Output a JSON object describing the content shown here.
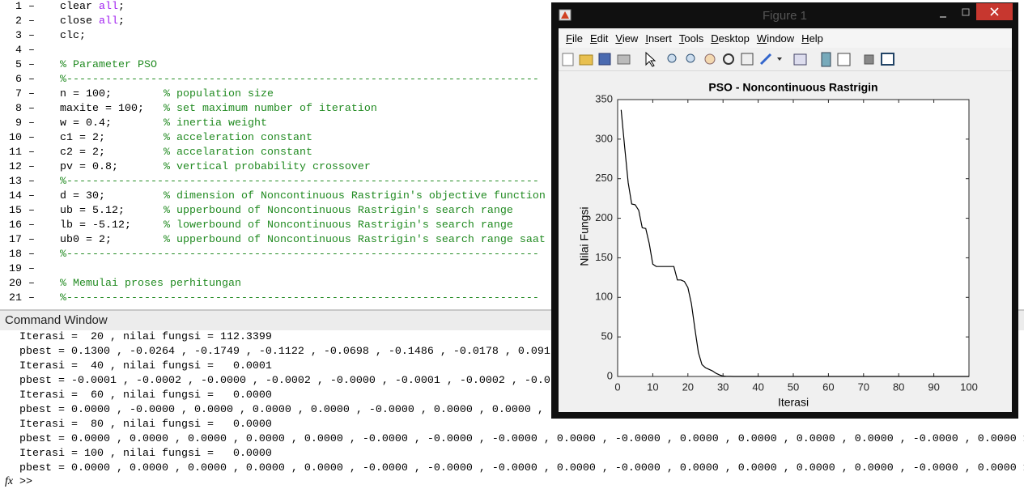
{
  "editor": {
    "lines": [
      {
        "number": "1",
        "segments": [
          {
            "text": "clear ",
            "color": "#000000"
          },
          {
            "text": "all",
            "color": "#a020f0"
          },
          {
            "text": ";",
            "color": "#000000"
          }
        ]
      },
      {
        "number": "2",
        "segments": [
          {
            "text": "close ",
            "color": "#000000"
          },
          {
            "text": "all",
            "color": "#a020f0"
          },
          {
            "text": ";",
            "color": "#000000"
          }
        ]
      },
      {
        "number": "3",
        "segments": [
          {
            "text": "clc;",
            "color": "#000000"
          }
        ]
      },
      {
        "number": "4",
        "segments": []
      },
      {
        "number": "5",
        "segments": [
          {
            "text": "% Parameter PSO",
            "color": "#228b22"
          }
        ]
      },
      {
        "number": "6",
        "segments": [
          {
            "text": "%-------------------------------------------------------------------------",
            "color": "#228b22"
          }
        ]
      },
      {
        "number": "7",
        "segments": [
          {
            "text": "n = 100;        ",
            "color": "#000000"
          },
          {
            "text": "% population size",
            "color": "#228b22"
          }
        ]
      },
      {
        "number": "8",
        "segments": [
          {
            "text": "maxite = 100;   ",
            "color": "#000000"
          },
          {
            "text": "% set maximum number of iteration",
            "color": "#228b22"
          }
        ]
      },
      {
        "number": "9",
        "segments": [
          {
            "text": "w = 0.4;        ",
            "color": "#000000"
          },
          {
            "text": "% inertia weight",
            "color": "#228b22"
          }
        ]
      },
      {
        "number": "10",
        "segments": [
          {
            "text": "c1 = 2;         ",
            "color": "#000000"
          },
          {
            "text": "% acceleration constant",
            "color": "#228b22"
          }
        ]
      },
      {
        "number": "11",
        "segments": [
          {
            "text": "c2 = 2;         ",
            "color": "#000000"
          },
          {
            "text": "% accelaration constant",
            "color": "#228b22"
          }
        ]
      },
      {
        "number": "12",
        "segments": [
          {
            "text": "pv = 0.8;       ",
            "color": "#000000"
          },
          {
            "text": "% vertical probability crossover",
            "color": "#228b22"
          }
        ]
      },
      {
        "number": "13",
        "segments": [
          {
            "text": "%-------------------------------------------------------------------------",
            "color": "#228b22"
          }
        ]
      },
      {
        "number": "14",
        "segments": [
          {
            "text": "d = 30;         ",
            "color": "#000000"
          },
          {
            "text": "% dimension of Noncontinuous Rastrigin's objective function",
            "color": "#228b22"
          }
        ]
      },
      {
        "number": "15",
        "segments": [
          {
            "text": "ub = 5.12;      ",
            "color": "#000000"
          },
          {
            "text": "% upperbound of Noncontinuous Rastrigin's search range",
            "color": "#228b22"
          }
        ]
      },
      {
        "number": "16",
        "segments": [
          {
            "text": "lb = -5.12;     ",
            "color": "#000000"
          },
          {
            "text": "% lowerbound of Noncontinuous Rastrigin's search range",
            "color": "#228b22"
          }
        ]
      },
      {
        "number": "17",
        "segments": [
          {
            "text": "ub0 = 2;        ",
            "color": "#000000"
          },
          {
            "text": "% upperbound of Noncontinuous Rastrigin's search range saat",
            "color": "#228b22"
          }
        ]
      },
      {
        "number": "18",
        "segments": [
          {
            "text": "%-------------------------------------------------------------------------",
            "color": "#228b22"
          }
        ]
      },
      {
        "number": "19",
        "segments": []
      },
      {
        "number": "20",
        "segments": [
          {
            "text": "% Memulai proses perhitungan",
            "color": "#228b22"
          }
        ]
      },
      {
        "number": "21",
        "segments": [
          {
            "text": "%-------------------------------------------------------------------------",
            "color": "#228b22"
          }
        ]
      }
    ]
  },
  "command_window": {
    "title": "Command Window",
    "lines": [
      "Iterasi =  20 , nilai fungsi = 112.3399",
      "pbest = 0.1300 , -0.0264 , -0.1749 , -0.1122 , -0.0698 , -0.1486 , -0.0178 , 0.091",
      "Iterasi =  40 , nilai fungsi =   0.0001",
      "pbest = -0.0001 , -0.0002 , -0.0000 , -0.0002 , -0.0000 , -0.0001 , -0.0002 , -0.0",
      "Iterasi =  60 , nilai fungsi =   0.0000",
      "pbest = 0.0000 , -0.0000 , 0.0000 , 0.0000 , 0.0000 , -0.0000 , 0.0000 , 0.0000 ,",
      "Iterasi =  80 , nilai fungsi =   0.0000",
      "pbest = 0.0000 , 0.0000 , 0.0000 , 0.0000 , 0.0000 , -0.0000 , -0.0000 , -0.0000 , 0.0000 , -0.0000 , 0.0000 , 0.0000 , 0.0000 , 0.0000 , -0.0000 , 0.0000 1",
      "Iterasi = 100 , nilai fungsi =   0.0000",
      "pbest = 0.0000 , 0.0000 , 0.0000 , 0.0000 , 0.0000 , -0.0000 , -0.0000 , -0.0000 , 0.0000 , -0.0000 , 0.0000 , 0.0000 , 0.0000 , 0.0000 , -0.0000 , 0.0000 1"
    ],
    "prompt_icon": "fx",
    "prompt": ">>"
  },
  "figure": {
    "title": "Figure 1",
    "menu": [
      "File",
      "Edit",
      "View",
      "Insert",
      "Tools",
      "Desktop",
      "Window",
      "Help"
    ]
  },
  "chart_data": {
    "type": "line",
    "title": "PSO - Noncontinuous Rastrigin",
    "xlabel": "Iterasi",
    "ylabel": "Nilai Fungsi",
    "x": [
      1,
      2,
      3,
      4,
      5,
      6,
      7,
      8,
      9,
      10,
      11,
      12,
      13,
      14,
      15,
      16,
      17,
      18,
      19,
      20,
      21,
      22,
      23,
      24,
      25,
      26,
      27,
      28,
      29,
      30,
      31,
      32,
      33,
      34,
      35,
      36,
      37,
      38,
      39,
      40,
      41,
      42,
      43,
      44,
      45,
      46,
      47,
      48,
      49,
      50,
      51,
      52,
      53,
      54,
      55,
      56,
      57,
      58,
      59,
      60,
      61,
      62,
      63,
      64,
      65,
      66,
      67,
      68,
      69,
      70,
      71,
      72,
      73,
      74,
      75,
      76,
      77,
      78,
      79,
      80,
      81,
      82,
      83,
      84,
      85,
      86,
      87,
      88,
      89,
      90,
      91,
      92,
      93,
      94,
      95,
      96,
      97,
      98,
      99,
      100
    ],
    "series": [
      {
        "color": "#000000",
        "values": [
          337,
          290,
          245,
          218,
          217,
          210,
          188,
          187,
          168,
          142,
          139,
          139,
          139,
          139,
          139,
          139,
          122,
          122,
          120,
          112.3399,
          92,
          60,
          30,
          15,
          11,
          9,
          7,
          4,
          2,
          0.5,
          0.2,
          0.1,
          0,
          0,
          0,
          0,
          0,
          0,
          0,
          0.0001,
          0,
          0,
          0,
          0,
          0,
          0,
          0,
          0,
          0,
          0,
          0,
          0,
          0,
          0,
          0,
          0,
          0,
          0,
          0,
          0,
          0,
          0,
          0,
          0,
          0,
          0,
          0,
          0,
          0,
          0,
          0,
          0,
          0,
          0,
          0,
          0,
          0,
          0,
          0,
          0,
          0,
          0,
          0,
          0,
          0,
          0,
          0,
          0,
          0,
          0,
          0,
          0,
          0,
          0,
          0,
          0,
          0,
          0,
          0,
          0
        ]
      }
    ],
    "xlim": [
      0,
      100
    ],
    "ylim": [
      0,
      350
    ],
    "xticks": [
      0,
      10,
      20,
      30,
      40,
      50,
      60,
      70,
      80,
      90,
      100
    ],
    "yticks": [
      0,
      50,
      100,
      150,
      200,
      250,
      300,
      350
    ],
    "box": true
  }
}
